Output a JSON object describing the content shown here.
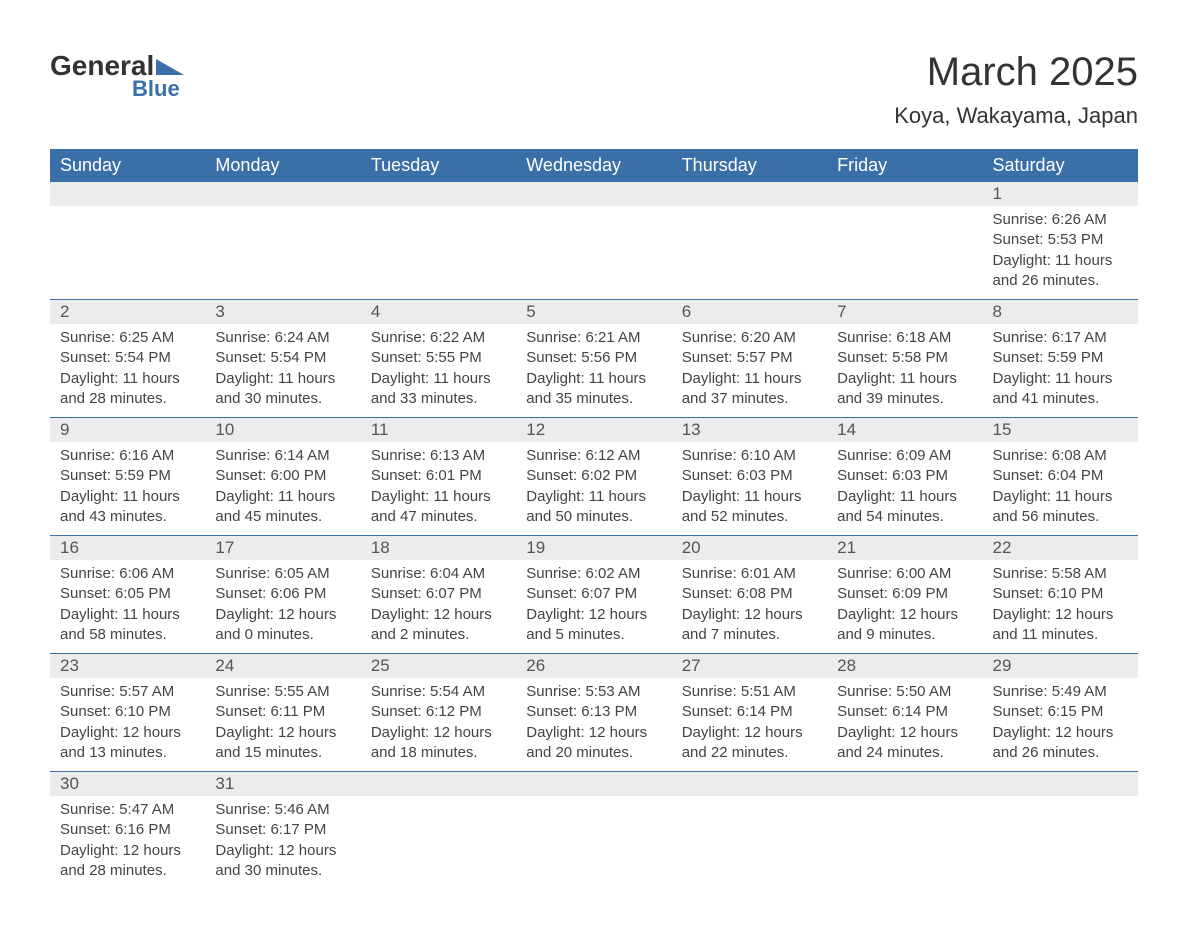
{
  "logo": {
    "general": "General",
    "blue": "Blue"
  },
  "title": "March 2025",
  "location": "Koya, Wakayama, Japan",
  "colors": {
    "header_bg": "#3b6fa8",
    "header_text": "#ffffff",
    "daynum_bg": "#ececec",
    "text": "#444444",
    "title_text": "#333333",
    "logo_blue": "#3b6fa8"
  },
  "weekdays": [
    "Sunday",
    "Monday",
    "Tuesday",
    "Wednesday",
    "Thursday",
    "Friday",
    "Saturday"
  ],
  "weeks": [
    [
      null,
      null,
      null,
      null,
      null,
      null,
      {
        "n": "1",
        "sunrise": "Sunrise: 6:26 AM",
        "sunset": "Sunset: 5:53 PM",
        "daylight": "Daylight: 11 hours and 26 minutes."
      }
    ],
    [
      {
        "n": "2",
        "sunrise": "Sunrise: 6:25 AM",
        "sunset": "Sunset: 5:54 PM",
        "daylight": "Daylight: 11 hours and 28 minutes."
      },
      {
        "n": "3",
        "sunrise": "Sunrise: 6:24 AM",
        "sunset": "Sunset: 5:54 PM",
        "daylight": "Daylight: 11 hours and 30 minutes."
      },
      {
        "n": "4",
        "sunrise": "Sunrise: 6:22 AM",
        "sunset": "Sunset: 5:55 PM",
        "daylight": "Daylight: 11 hours and 33 minutes."
      },
      {
        "n": "5",
        "sunrise": "Sunrise: 6:21 AM",
        "sunset": "Sunset: 5:56 PM",
        "daylight": "Daylight: 11 hours and 35 minutes."
      },
      {
        "n": "6",
        "sunrise": "Sunrise: 6:20 AM",
        "sunset": "Sunset: 5:57 PM",
        "daylight": "Daylight: 11 hours and 37 minutes."
      },
      {
        "n": "7",
        "sunrise": "Sunrise: 6:18 AM",
        "sunset": "Sunset: 5:58 PM",
        "daylight": "Daylight: 11 hours and 39 minutes."
      },
      {
        "n": "8",
        "sunrise": "Sunrise: 6:17 AM",
        "sunset": "Sunset: 5:59 PM",
        "daylight": "Daylight: 11 hours and 41 minutes."
      }
    ],
    [
      {
        "n": "9",
        "sunrise": "Sunrise: 6:16 AM",
        "sunset": "Sunset: 5:59 PM",
        "daylight": "Daylight: 11 hours and 43 minutes."
      },
      {
        "n": "10",
        "sunrise": "Sunrise: 6:14 AM",
        "sunset": "Sunset: 6:00 PM",
        "daylight": "Daylight: 11 hours and 45 minutes."
      },
      {
        "n": "11",
        "sunrise": "Sunrise: 6:13 AM",
        "sunset": "Sunset: 6:01 PM",
        "daylight": "Daylight: 11 hours and 47 minutes."
      },
      {
        "n": "12",
        "sunrise": "Sunrise: 6:12 AM",
        "sunset": "Sunset: 6:02 PM",
        "daylight": "Daylight: 11 hours and 50 minutes."
      },
      {
        "n": "13",
        "sunrise": "Sunrise: 6:10 AM",
        "sunset": "Sunset: 6:03 PM",
        "daylight": "Daylight: 11 hours and 52 minutes."
      },
      {
        "n": "14",
        "sunrise": "Sunrise: 6:09 AM",
        "sunset": "Sunset: 6:03 PM",
        "daylight": "Daylight: 11 hours and 54 minutes."
      },
      {
        "n": "15",
        "sunrise": "Sunrise: 6:08 AM",
        "sunset": "Sunset: 6:04 PM",
        "daylight": "Daylight: 11 hours and 56 minutes."
      }
    ],
    [
      {
        "n": "16",
        "sunrise": "Sunrise: 6:06 AM",
        "sunset": "Sunset: 6:05 PM",
        "daylight": "Daylight: 11 hours and 58 minutes."
      },
      {
        "n": "17",
        "sunrise": "Sunrise: 6:05 AM",
        "sunset": "Sunset: 6:06 PM",
        "daylight": "Daylight: 12 hours and 0 minutes."
      },
      {
        "n": "18",
        "sunrise": "Sunrise: 6:04 AM",
        "sunset": "Sunset: 6:07 PM",
        "daylight": "Daylight: 12 hours and 2 minutes."
      },
      {
        "n": "19",
        "sunrise": "Sunrise: 6:02 AM",
        "sunset": "Sunset: 6:07 PM",
        "daylight": "Daylight: 12 hours and 5 minutes."
      },
      {
        "n": "20",
        "sunrise": "Sunrise: 6:01 AM",
        "sunset": "Sunset: 6:08 PM",
        "daylight": "Daylight: 12 hours and 7 minutes."
      },
      {
        "n": "21",
        "sunrise": "Sunrise: 6:00 AM",
        "sunset": "Sunset: 6:09 PM",
        "daylight": "Daylight: 12 hours and 9 minutes."
      },
      {
        "n": "22",
        "sunrise": "Sunrise: 5:58 AM",
        "sunset": "Sunset: 6:10 PM",
        "daylight": "Daylight: 12 hours and 11 minutes."
      }
    ],
    [
      {
        "n": "23",
        "sunrise": "Sunrise: 5:57 AM",
        "sunset": "Sunset: 6:10 PM",
        "daylight": "Daylight: 12 hours and 13 minutes."
      },
      {
        "n": "24",
        "sunrise": "Sunrise: 5:55 AM",
        "sunset": "Sunset: 6:11 PM",
        "daylight": "Daylight: 12 hours and 15 minutes."
      },
      {
        "n": "25",
        "sunrise": "Sunrise: 5:54 AM",
        "sunset": "Sunset: 6:12 PM",
        "daylight": "Daylight: 12 hours and 18 minutes."
      },
      {
        "n": "26",
        "sunrise": "Sunrise: 5:53 AM",
        "sunset": "Sunset: 6:13 PM",
        "daylight": "Daylight: 12 hours and 20 minutes."
      },
      {
        "n": "27",
        "sunrise": "Sunrise: 5:51 AM",
        "sunset": "Sunset: 6:14 PM",
        "daylight": "Daylight: 12 hours and 22 minutes."
      },
      {
        "n": "28",
        "sunrise": "Sunrise: 5:50 AM",
        "sunset": "Sunset: 6:14 PM",
        "daylight": "Daylight: 12 hours and 24 minutes."
      },
      {
        "n": "29",
        "sunrise": "Sunrise: 5:49 AM",
        "sunset": "Sunset: 6:15 PM",
        "daylight": "Daylight: 12 hours and 26 minutes."
      }
    ],
    [
      {
        "n": "30",
        "sunrise": "Sunrise: 5:47 AM",
        "sunset": "Sunset: 6:16 PM",
        "daylight": "Daylight: 12 hours and 28 minutes."
      },
      {
        "n": "31",
        "sunrise": "Sunrise: 5:46 AM",
        "sunset": "Sunset: 6:17 PM",
        "daylight": "Daylight: 12 hours and 30 minutes."
      },
      null,
      null,
      null,
      null,
      null
    ]
  ]
}
